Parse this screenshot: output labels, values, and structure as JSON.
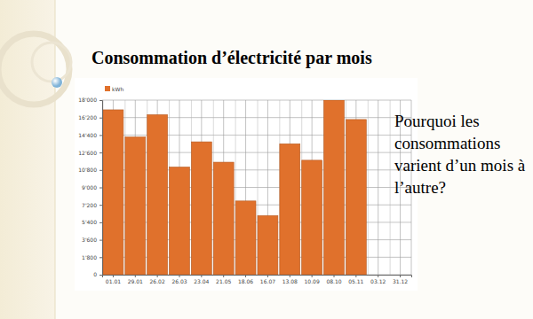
{
  "chart_data": {
    "type": "bar",
    "title": "Consommation d’électricité par mois",
    "annotation": "Pourquoi les consommations varient d’un mois à l’autre?",
    "categories": [
      "01.01",
      "29.01",
      "26.02",
      "26.03",
      "23.04",
      "21.05",
      "18.06",
      "16.07",
      "13.08",
      "10.09",
      "08.10",
      "05.11",
      "03.12",
      "31.12"
    ],
    "series": [
      {
        "name": "kWh",
        "color": "#e0712c",
        "values": [
          17000,
          14200,
          16500,
          11100,
          13700,
          11600,
          7600,
          6100,
          13500,
          11800,
          18000,
          16000,
          null,
          null
        ]
      }
    ],
    "ylim": [
      0,
      18000
    ],
    "yticks": [
      0,
      {
        "value": 1800,
        "label": "1'800"
      },
      {
        "value": 3600,
        "label": "3'600"
      },
      {
        "value": 5400,
        "label": "5'400"
      },
      {
        "value": 7200,
        "label": "7'200"
      },
      {
        "value": 9000,
        "label": "9'000"
      },
      {
        "value": 10800,
        "label": "10'800"
      },
      {
        "value": 12600,
        "label": "12'600"
      },
      {
        "value": 14400,
        "label": "14'400"
      },
      {
        "value": 16200,
        "label": "16'200"
      },
      {
        "value": 18000,
        "label": "18'000"
      }
    ],
    "grid": true,
    "legend": "top-left"
  }
}
